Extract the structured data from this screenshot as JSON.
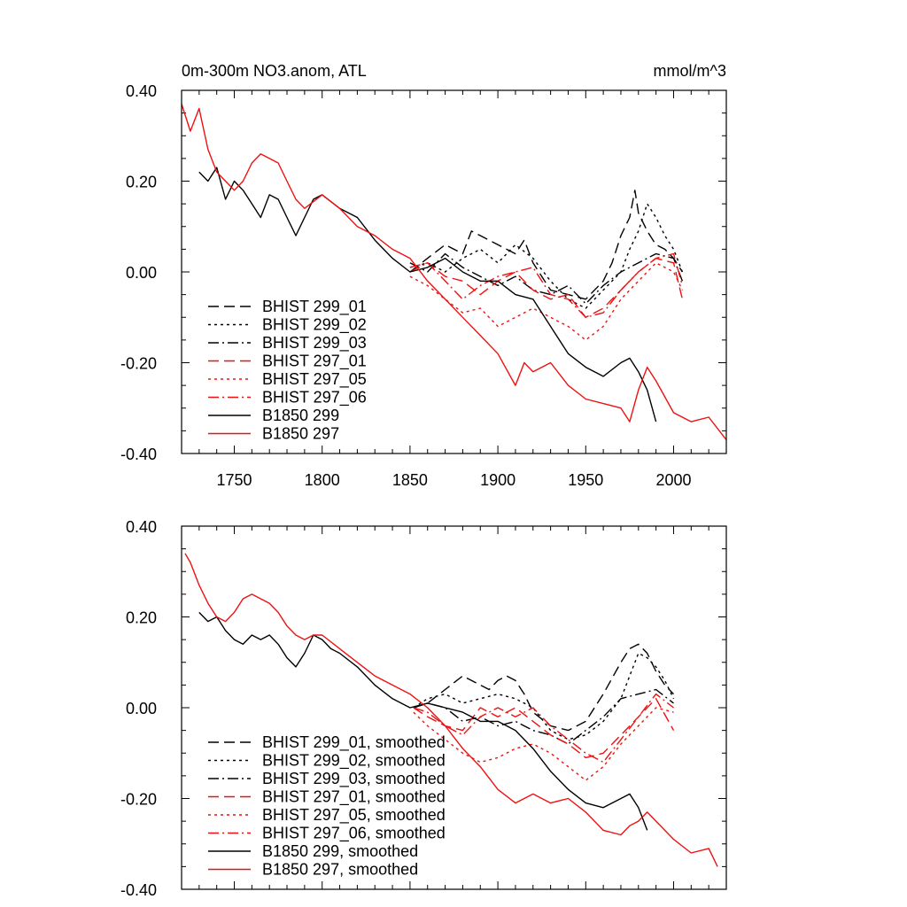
{
  "colors": {
    "black": "#000000",
    "red": "#ee1111"
  },
  "chart_data": [
    {
      "type": "line",
      "title": "0m-300m NO3.anom, ATL",
      "units": "mmol/m^3",
      "xlim": [
        1720,
        2030
      ],
      "ylim": [
        -0.4,
        0.4
      ],
      "xticks": [
        "1750",
        "1800",
        "1850",
        "1900",
        "1950",
        "2000"
      ],
      "yticks": [
        "-0.40",
        "-0.20",
        "0.00",
        "0.20",
        "0.40"
      ],
      "legend": "bottom-left",
      "series": [
        {
          "name": "BHIST 299_01",
          "color": "#000000",
          "dash": "dash",
          "x": [
            1850,
            1860,
            1870,
            1880,
            1885,
            1890,
            1900,
            1910,
            1915,
            1920,
            1930,
            1940,
            1950,
            1960,
            1965,
            1970,
            1975,
            1978,
            1980,
            1985,
            1990,
            1995,
            2000,
            2005
          ],
          "y": [
            0.0,
            0.03,
            0.06,
            0.04,
            0.09,
            0.08,
            0.06,
            0.04,
            0.07,
            0.02,
            -0.04,
            -0.05,
            -0.06,
            -0.02,
            0.02,
            0.08,
            0.12,
            0.18,
            0.13,
            0.09,
            0.06,
            0.05,
            0.03,
            0.0
          ]
        },
        {
          "name": "BHIST 299_02",
          "color": "#000000",
          "dash": "dot",
          "x": [
            1850,
            1860,
            1870,
            1880,
            1890,
            1900,
            1910,
            1920,
            1930,
            1940,
            1950,
            1960,
            1970,
            1975,
            1980,
            1985,
            1990,
            1995,
            2000,
            2005
          ],
          "y": [
            0.01,
            0.02,
            0.0,
            0.03,
            0.05,
            0.02,
            0.06,
            0.03,
            -0.02,
            -0.06,
            -0.08,
            -0.04,
            0.0,
            0.05,
            0.09,
            0.15,
            0.12,
            0.08,
            0.05,
            0.0
          ]
        },
        {
          "name": "BHIST 299_03",
          "color": "#000000",
          "dash": "dashdot",
          "x": [
            1850,
            1860,
            1870,
            1880,
            1890,
            1900,
            1910,
            1920,
            1930,
            1940,
            1950,
            1960,
            1970,
            1980,
            1990,
            2000,
            2005
          ],
          "y": [
            0.02,
            0.0,
            0.04,
            0.01,
            -0.01,
            -0.03,
            -0.01,
            -0.04,
            -0.05,
            -0.03,
            -0.07,
            -0.03,
            0.0,
            0.02,
            0.04,
            0.03,
            -0.02
          ]
        },
        {
          "name": "BHIST 297_01",
          "color": "#ee1111",
          "dash": "dash",
          "x": [
            1850,
            1860,
            1870,
            1880,
            1890,
            1900,
            1910,
            1920,
            1930,
            1940,
            1950,
            1960,
            1970,
            1980,
            1990,
            2000,
            2005
          ],
          "y": [
            0.01,
            0.02,
            -0.01,
            -0.02,
            -0.05,
            -0.02,
            0.0,
            -0.04,
            -0.06,
            -0.05,
            -0.1,
            -0.08,
            -0.04,
            0.0,
            0.03,
            0.02,
            -0.06
          ]
        },
        {
          "name": "BHIST 297_05",
          "color": "#ee1111",
          "dash": "dot",
          "x": [
            1850,
            1860,
            1870,
            1880,
            1890,
            1900,
            1910,
            1920,
            1930,
            1940,
            1950,
            1960,
            1970,
            1980,
            1990,
            2000,
            2005
          ],
          "y": [
            -0.01,
            -0.03,
            -0.06,
            -0.09,
            -0.08,
            -0.12,
            -0.1,
            -0.08,
            -0.1,
            -0.12,
            -0.15,
            -0.12,
            -0.06,
            -0.02,
            0.02,
            0.0,
            -0.04
          ]
        },
        {
          "name": "BHIST 297_06",
          "color": "#ee1111",
          "dash": "dashdot",
          "x": [
            1850,
            1860,
            1870,
            1880,
            1890,
            1900,
            1910,
            1920,
            1930,
            1940,
            1950,
            1960,
            1970,
            1980,
            1990,
            2000,
            2005
          ],
          "y": [
            0.0,
            0.02,
            -0.02,
            -0.06,
            -0.03,
            -0.01,
            0.0,
            0.01,
            -0.05,
            -0.06,
            -0.1,
            -0.09,
            -0.04,
            0.0,
            0.03,
            0.04,
            -0.03
          ]
        },
        {
          "name": "B1850 299",
          "color": "#000000",
          "dash": "solid",
          "x": [
            1730,
            1735,
            1740,
            1745,
            1750,
            1755,
            1760,
            1765,
            1770,
            1775,
            1780,
            1785,
            1790,
            1795,
            1800,
            1810,
            1820,
            1830,
            1840,
            1850,
            1860,
            1870,
            1880,
            1890,
            1900,
            1910,
            1920,
            1930,
            1940,
            1950,
            1960,
            1970,
            1975,
            1980,
            1985,
            1990
          ],
          "y": [
            0.22,
            0.2,
            0.23,
            0.16,
            0.2,
            0.18,
            0.15,
            0.12,
            0.17,
            0.16,
            0.12,
            0.08,
            0.12,
            0.16,
            0.17,
            0.14,
            0.12,
            0.07,
            0.03,
            0.0,
            0.01,
            0.03,
            0.0,
            -0.02,
            -0.02,
            -0.05,
            -0.06,
            -0.12,
            -0.18,
            -0.21,
            -0.23,
            -0.2,
            -0.19,
            -0.22,
            -0.26,
            -0.33
          ]
        },
        {
          "name": "B1850 297",
          "color": "#ee1111",
          "dash": "solid",
          "x": [
            1720,
            1725,
            1730,
            1735,
            1740,
            1745,
            1750,
            1755,
            1760,
            1765,
            1770,
            1775,
            1780,
            1785,
            1790,
            1800,
            1810,
            1820,
            1830,
            1840,
            1850,
            1860,
            1870,
            1880,
            1890,
            1900,
            1910,
            1915,
            1920,
            1930,
            1940,
            1950,
            1960,
            1970,
            1975,
            1980,
            1985,
            1990,
            2000,
            2010,
            2020,
            2030
          ],
          "y": [
            0.37,
            0.31,
            0.36,
            0.27,
            0.22,
            0.2,
            0.18,
            0.2,
            0.24,
            0.26,
            0.25,
            0.24,
            0.2,
            0.16,
            0.14,
            0.17,
            0.14,
            0.1,
            0.08,
            0.05,
            0.03,
            -0.02,
            -0.06,
            -0.1,
            -0.14,
            -0.18,
            -0.25,
            -0.2,
            -0.22,
            -0.2,
            -0.25,
            -0.28,
            -0.29,
            -0.3,
            -0.33,
            -0.26,
            -0.21,
            -0.24,
            -0.31,
            -0.33,
            -0.32,
            -0.37
          ]
        }
      ]
    },
    {
      "type": "line",
      "xlim": [
        1720,
        2030
      ],
      "ylim": [
        -0.4,
        0.4
      ],
      "yticks": [
        "-0.40",
        "-0.20",
        "0.00",
        "0.20",
        "0.40"
      ],
      "legend": "bottom-left",
      "series": [
        {
          "name": "BHIST 299_01, smoothed",
          "color": "#000000",
          "dash": "dash",
          "x": [
            1852,
            1860,
            1870,
            1880,
            1885,
            1890,
            1895,
            1900,
            1905,
            1910,
            1915,
            1920,
            1930,
            1940,
            1950,
            1960,
            1970,
            1975,
            1980,
            1985,
            1990,
            1995,
            2000
          ],
          "y": [
            0.0,
            0.01,
            0.04,
            0.07,
            0.06,
            0.05,
            0.04,
            0.06,
            0.07,
            0.06,
            0.03,
            -0.01,
            -0.04,
            -0.05,
            -0.03,
            0.03,
            0.1,
            0.13,
            0.14,
            0.12,
            0.08,
            0.05,
            0.03
          ]
        },
        {
          "name": "BHIST 299_02, smoothed",
          "color": "#000000",
          "dash": "dot",
          "x": [
            1852,
            1860,
            1870,
            1880,
            1890,
            1900,
            1910,
            1920,
            1930,
            1940,
            1950,
            1960,
            1970,
            1975,
            1980,
            1985,
            1990,
            1995,
            2000
          ],
          "y": [
            0.0,
            0.02,
            0.03,
            0.01,
            0.02,
            0.03,
            0.02,
            0.0,
            -0.05,
            -0.07,
            -0.06,
            -0.03,
            0.02,
            0.07,
            0.12,
            0.11,
            0.09,
            0.06,
            0.02
          ]
        },
        {
          "name": "BHIST 299_03, smoothed",
          "color": "#000000",
          "dash": "dashdot",
          "x": [
            1852,
            1860,
            1870,
            1880,
            1890,
            1900,
            1910,
            1920,
            1930,
            1940,
            1950,
            1960,
            1970,
            1980,
            1990,
            2000
          ],
          "y": [
            0.0,
            0.01,
            0.0,
            -0.03,
            -0.02,
            -0.04,
            -0.03,
            -0.05,
            -0.06,
            -0.08,
            -0.05,
            -0.02,
            0.02,
            0.03,
            0.04,
            0.01
          ]
        },
        {
          "name": "BHIST 297_01, smoothed",
          "color": "#ee1111",
          "dash": "dash",
          "x": [
            1852,
            1860,
            1870,
            1880,
            1890,
            1900,
            1910,
            1920,
            1930,
            1940,
            1950,
            1960,
            1970,
            1980,
            1990,
            2000
          ],
          "y": [
            0.0,
            -0.02,
            -0.04,
            -0.05,
            0.0,
            -0.02,
            0.0,
            -0.03,
            -0.06,
            -0.08,
            -0.11,
            -0.1,
            -0.06,
            -0.02,
            0.02,
            -0.05
          ]
        },
        {
          "name": "BHIST 297_05, smoothed",
          "color": "#ee1111",
          "dash": "dot",
          "x": [
            1852,
            1860,
            1870,
            1880,
            1890,
            1900,
            1910,
            1920,
            1930,
            1940,
            1950,
            1960,
            1970,
            1980,
            1990,
            2000
          ],
          "y": [
            -0.01,
            -0.04,
            -0.07,
            -0.1,
            -0.12,
            -0.11,
            -0.09,
            -0.08,
            -0.1,
            -0.13,
            -0.16,
            -0.13,
            -0.08,
            -0.04,
            0.0,
            -0.01
          ]
        },
        {
          "name": "BHIST 297_06, smoothed",
          "color": "#ee1111",
          "dash": "dashdot",
          "x": [
            1852,
            1860,
            1870,
            1880,
            1890,
            1900,
            1910,
            1920,
            1930,
            1940,
            1950,
            1960,
            1970,
            1980,
            1990,
            2000
          ],
          "y": [
            0.0,
            -0.01,
            -0.04,
            -0.06,
            -0.02,
            0.0,
            -0.02,
            0.0,
            -0.04,
            -0.07,
            -0.1,
            -0.12,
            -0.07,
            -0.02,
            0.03,
            0.0
          ]
        },
        {
          "name": "B1850 299, smoothed",
          "color": "#000000",
          "dash": "solid",
          "x": [
            1730,
            1735,
            1740,
            1745,
            1750,
            1755,
            1760,
            1765,
            1770,
            1775,
            1780,
            1785,
            1790,
            1795,
            1800,
            1805,
            1810,
            1820,
            1830,
            1840,
            1850,
            1860,
            1870,
            1880,
            1890,
            1900,
            1910,
            1920,
            1930,
            1940,
            1950,
            1960,
            1970,
            1975,
            1980,
            1985
          ],
          "y": [
            0.21,
            0.19,
            0.2,
            0.17,
            0.15,
            0.14,
            0.16,
            0.15,
            0.16,
            0.14,
            0.11,
            0.09,
            0.12,
            0.16,
            0.15,
            0.13,
            0.12,
            0.09,
            0.05,
            0.02,
            0.0,
            0.01,
            0.0,
            -0.01,
            -0.03,
            -0.03,
            -0.05,
            -0.09,
            -0.14,
            -0.18,
            -0.21,
            -0.22,
            -0.2,
            -0.19,
            -0.22,
            -0.27
          ]
        },
        {
          "name": "B1850 297, smoothed",
          "color": "#ee1111",
          "dash": "solid",
          "x": [
            1722,
            1725,
            1730,
            1735,
            1740,
            1745,
            1750,
            1755,
            1760,
            1765,
            1770,
            1775,
            1780,
            1785,
            1790,
            1795,
            1800,
            1810,
            1820,
            1830,
            1840,
            1850,
            1860,
            1870,
            1880,
            1890,
            1900,
            1910,
            1915,
            1920,
            1930,
            1940,
            1950,
            1960,
            1970,
            1975,
            1980,
            1985,
            1990,
            2000,
            2010,
            2020,
            2025
          ],
          "y": [
            0.34,
            0.32,
            0.27,
            0.23,
            0.2,
            0.19,
            0.21,
            0.24,
            0.25,
            0.24,
            0.23,
            0.21,
            0.18,
            0.16,
            0.15,
            0.16,
            0.16,
            0.13,
            0.1,
            0.07,
            0.05,
            0.03,
            0.0,
            -0.04,
            -0.09,
            -0.13,
            -0.18,
            -0.21,
            -0.2,
            -0.19,
            -0.21,
            -0.2,
            -0.23,
            -0.27,
            -0.28,
            -0.26,
            -0.25,
            -0.23,
            -0.25,
            -0.29,
            -0.32,
            -0.31,
            -0.35
          ]
        }
      ]
    }
  ]
}
